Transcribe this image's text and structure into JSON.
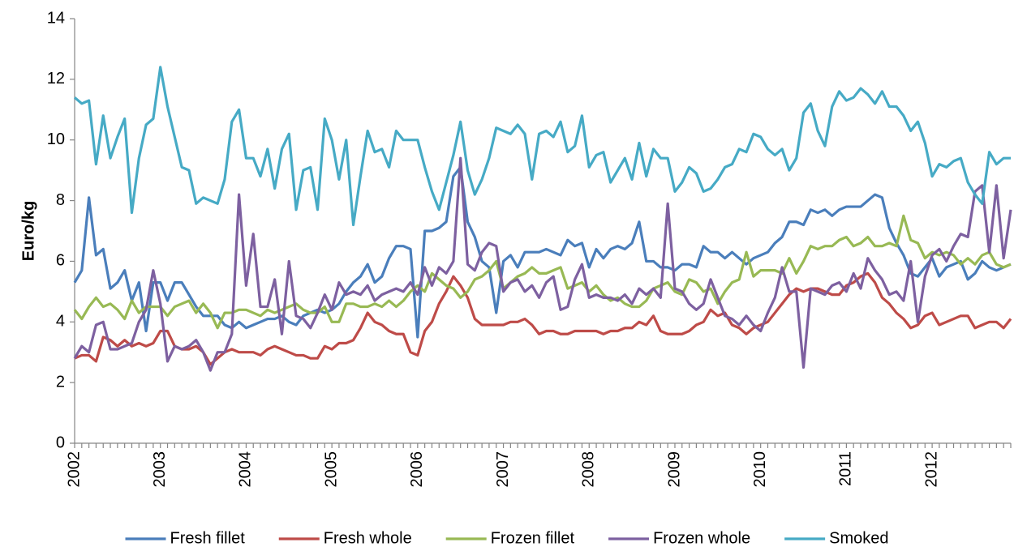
{
  "chart_data": {
    "type": "line",
    "y_label": "Euro/kg",
    "categories": [
      "2002",
      null,
      null,
      null,
      null,
      null,
      null,
      null,
      null,
      null,
      null,
      null,
      "2003",
      null,
      null,
      null,
      null,
      null,
      null,
      null,
      null,
      null,
      null,
      null,
      "2004",
      null,
      null,
      null,
      null,
      null,
      null,
      null,
      null,
      null,
      null,
      null,
      "2005",
      null,
      null,
      null,
      null,
      null,
      null,
      null,
      null,
      null,
      null,
      null,
      "2006",
      null,
      null,
      null,
      null,
      null,
      null,
      null,
      null,
      null,
      null,
      null,
      "2007",
      null,
      null,
      null,
      null,
      null,
      null,
      null,
      null,
      null,
      null,
      null,
      "2008",
      null,
      null,
      null,
      null,
      null,
      null,
      null,
      null,
      null,
      null,
      null,
      "2009",
      null,
      null,
      null,
      null,
      null,
      null,
      null,
      null,
      null,
      null,
      null,
      "2010",
      null,
      null,
      null,
      null,
      null,
      null,
      null,
      null,
      null,
      null,
      null,
      "2011",
      null,
      null,
      null,
      null,
      null,
      null,
      null,
      null,
      null,
      null,
      null,
      "2012",
      null,
      null,
      null,
      null,
      null,
      null,
      null,
      null,
      null,
      null,
      null
    ],
    "ylim": [
      0,
      14
    ],
    "yticks": [
      0,
      2,
      4,
      6,
      8,
      10,
      12,
      14
    ],
    "grid": false,
    "legend": "bottom",
    "series": [
      {
        "name": "Fresh fillet",
        "color": "#4a7ebb",
        "values": [
          5.3,
          5.7,
          8.1,
          6.2,
          6.4,
          5.1,
          5.3,
          5.7,
          4.7,
          5.3,
          3.7,
          5.3,
          5.3,
          4.7,
          5.3,
          5.3,
          4.9,
          4.5,
          4.2,
          4.2,
          4.2,
          3.9,
          3.8,
          4.0,
          3.8,
          3.9,
          4.0,
          4.1,
          4.1,
          4.2,
          4.0,
          3.9,
          4.2,
          4.3,
          4.4,
          4.3,
          4.4,
          4.6,
          5.0,
          5.3,
          5.5,
          5.9,
          5.3,
          5.5,
          6.1,
          6.5,
          6.5,
          6.4,
          3.5,
          7.0,
          7.0,
          7.1,
          7.3,
          8.8,
          9.1,
          7.3,
          6.8,
          6.0,
          5.8,
          4.3,
          6.0,
          6.2,
          5.8,
          6.3,
          6.3,
          6.3,
          6.4,
          6.3,
          6.2,
          6.7,
          6.5,
          6.6,
          5.8,
          6.4,
          6.1,
          6.4,
          6.5,
          6.4,
          6.6,
          7.3,
          6.0,
          6.0,
          5.8,
          5.8,
          5.7,
          5.9,
          5.9,
          5.8,
          6.5,
          6.3,
          6.3,
          6.1,
          6.3,
          6.1,
          5.9,
          6.1,
          6.2,
          6.3,
          6.6,
          6.8,
          7.3,
          7.3,
          7.2,
          7.7,
          7.6,
          7.7,
          7.5,
          7.7,
          7.8,
          7.8,
          7.8,
          8.0,
          8.2,
          8.1,
          7.1,
          6.6,
          6.2,
          5.6,
          5.5,
          5.8,
          6.1,
          5.5,
          5.8,
          5.9,
          6.0,
          5.4,
          5.6,
          6.0,
          5.8,
          5.7,
          5.8,
          5.9
        ]
      },
      {
        "name": "Fresh whole",
        "color": "#be4b48",
        "values": [
          2.8,
          2.9,
          2.9,
          2.7,
          3.5,
          3.4,
          3.2,
          3.4,
          3.2,
          3.3,
          3.2,
          3.3,
          3.7,
          3.7,
          3.2,
          3.1,
          3.1,
          3.2,
          3.0,
          2.6,
          2.8,
          3.0,
          3.1,
          3.0,
          3.0,
          3.0,
          2.9,
          3.1,
          3.2,
          3.1,
          3.0,
          2.9,
          2.9,
          2.8,
          2.8,
          3.2,
          3.1,
          3.3,
          3.3,
          3.4,
          3.8,
          4.3,
          4.0,
          3.9,
          3.7,
          3.6,
          3.6,
          3.0,
          2.9,
          3.7,
          4.0,
          4.6,
          5.0,
          5.5,
          5.2,
          4.8,
          4.1,
          3.9,
          3.9,
          3.9,
          3.9,
          4.0,
          4.0,
          4.1,
          3.9,
          3.6,
          3.7,
          3.7,
          3.6,
          3.6,
          3.7,
          3.7,
          3.7,
          3.7,
          3.6,
          3.7,
          3.7,
          3.8,
          3.8,
          4.0,
          3.9,
          4.2,
          3.7,
          3.6,
          3.6,
          3.6,
          3.7,
          3.9,
          4.0,
          4.4,
          4.2,
          4.3,
          3.9,
          3.8,
          3.6,
          3.8,
          3.9,
          4.0,
          4.3,
          4.6,
          4.9,
          5.1,
          5.0,
          5.1,
          5.1,
          5.0,
          4.9,
          4.9,
          5.2,
          5.3,
          5.5,
          5.6,
          5.3,
          4.8,
          4.6,
          4.3,
          4.1,
          3.8,
          3.9,
          4.2,
          4.3,
          3.9,
          4.0,
          4.1,
          4.2,
          4.2,
          3.8,
          3.9,
          4.0,
          4.0,
          3.8,
          4.1
        ]
      },
      {
        "name": "Frozen fillet",
        "color": "#98b954",
        "values": [
          4.4,
          4.1,
          4.5,
          4.8,
          4.5,
          4.6,
          4.4,
          4.1,
          4.7,
          4.3,
          4.5,
          4.5,
          4.5,
          4.2,
          4.5,
          4.6,
          4.7,
          4.3,
          4.6,
          4.3,
          3.8,
          4.3,
          4.3,
          4.4,
          4.4,
          4.3,
          4.2,
          4.4,
          4.3,
          4.4,
          4.5,
          4.6,
          4.4,
          4.3,
          4.3,
          4.5,
          4.0,
          4.0,
          4.6,
          4.6,
          4.5,
          4.5,
          4.6,
          4.5,
          4.7,
          4.5,
          4.7,
          5.0,
          5.2,
          5.0,
          5.6,
          5.4,
          5.2,
          5.1,
          4.8,
          5.0,
          5.4,
          5.5,
          5.7,
          6.0,
          5.1,
          5.3,
          5.5,
          5.6,
          5.8,
          5.6,
          5.6,
          5.7,
          5.8,
          5.1,
          5.2,
          5.3,
          5.0,
          5.2,
          4.9,
          4.7,
          4.8,
          4.6,
          4.5,
          4.5,
          4.7,
          5.1,
          5.2,
          5.3,
          5.0,
          4.9,
          5.4,
          5.3,
          5.0,
          5.1,
          4.6,
          5.0,
          5.3,
          5.4,
          6.3,
          5.5,
          5.7,
          5.7,
          5.7,
          5.6,
          6.1,
          5.6,
          6.0,
          6.5,
          6.4,
          6.5,
          6.5,
          6.7,
          6.8,
          6.5,
          6.6,
          6.8,
          6.5,
          6.5,
          6.6,
          6.5,
          7.5,
          6.7,
          6.6,
          6.1,
          6.3,
          6.2,
          6.3,
          6.2,
          5.9,
          6.1,
          5.9,
          6.2,
          6.3,
          5.9,
          5.8,
          5.9
        ]
      },
      {
        "name": "Frozen whole",
        "color": "#7d60a0",
        "values": [
          2.8,
          3.2,
          3.0,
          3.9,
          4.0,
          3.1,
          3.1,
          3.2,
          3.3,
          4.0,
          4.4,
          5.7,
          4.6,
          2.7,
          3.2,
          3.1,
          3.2,
          3.4,
          3.0,
          2.4,
          3.0,
          3.0,
          3.6,
          8.2,
          5.2,
          6.9,
          4.5,
          4.5,
          5.4,
          3.6,
          6.0,
          4.2,
          4.1,
          3.8,
          4.3,
          4.9,
          4.4,
          5.3,
          4.9,
          5.0,
          4.9,
          5.2,
          4.7,
          4.9,
          5.0,
          5.1,
          5.0,
          5.3,
          4.9,
          5.8,
          5.2,
          5.8,
          5.6,
          6.0,
          9.4,
          5.9,
          5.7,
          6.3,
          6.6,
          6.5,
          5.0,
          5.3,
          5.4,
          5.0,
          5.2,
          4.8,
          5.3,
          5.5,
          4.4,
          4.5,
          5.4,
          5.9,
          4.8,
          4.9,
          4.8,
          4.8,
          4.7,
          4.9,
          4.6,
          5.1,
          4.9,
          5.1,
          4.8,
          7.9,
          5.1,
          5.0,
          4.6,
          4.4,
          4.6,
          5.4,
          4.8,
          4.2,
          4.1,
          3.9,
          4.2,
          3.9,
          3.7,
          4.3,
          4.8,
          5.8,
          5.0,
          5.0,
          2.5,
          5.1,
          5.0,
          4.9,
          5.2,
          5.3,
          5.0,
          5.6,
          5.1,
          6.1,
          5.7,
          5.4,
          4.9,
          5.0,
          4.7,
          6.0,
          4.0,
          5.5,
          6.2,
          6.4,
          6.0,
          6.5,
          6.9,
          6.8,
          8.3,
          8.5,
          6.3,
          8.5,
          6.1,
          7.7
        ]
      },
      {
        "name": "Smoked",
        "color": "#46aac5",
        "values": [
          11.4,
          11.2,
          11.3,
          9.2,
          10.8,
          9.4,
          10.1,
          10.7,
          7.6,
          9.4,
          10.5,
          10.7,
          12.4,
          11.1,
          10.1,
          9.1,
          9.0,
          7.9,
          8.1,
          8.0,
          7.9,
          8.7,
          10.6,
          11.0,
          9.4,
          9.4,
          8.8,
          9.7,
          8.4,
          9.7,
          10.2,
          7.7,
          9.0,
          9.1,
          7.7,
          10.7,
          10.0,
          8.7,
          10.0,
          7.2,
          8.8,
          10.3,
          9.6,
          9.7,
          9.1,
          10.3,
          10.0,
          10.0,
          10.0,
          9.1,
          8.3,
          7.7,
          8.6,
          9.5,
          10.6,
          9.0,
          8.2,
          8.7,
          9.4,
          10.4,
          10.3,
          10.2,
          10.5,
          10.2,
          8.7,
          10.2,
          10.3,
          10.1,
          10.6,
          9.6,
          9.8,
          10.8,
          9.1,
          9.5,
          9.6,
          8.6,
          9.0,
          9.4,
          8.7,
          9.9,
          8.8,
          9.7,
          9.4,
          9.4,
          8.3,
          8.6,
          9.1,
          8.9,
          8.3,
          8.4,
          8.7,
          9.1,
          9.2,
          9.7,
          9.6,
          10.2,
          10.1,
          9.7,
          9.5,
          9.7,
          9.0,
          9.4,
          10.9,
          11.2,
          10.3,
          9.8,
          11.1,
          11.6,
          11.3,
          11.4,
          11.7,
          11.5,
          11.2,
          11.6,
          11.1,
          11.1,
          10.8,
          10.3,
          10.6,
          9.9,
          8.8,
          9.2,
          9.1,
          9.3,
          9.4,
          8.6,
          8.2,
          7.9,
          9.6,
          9.2,
          9.4,
          9.4
        ]
      }
    ]
  }
}
